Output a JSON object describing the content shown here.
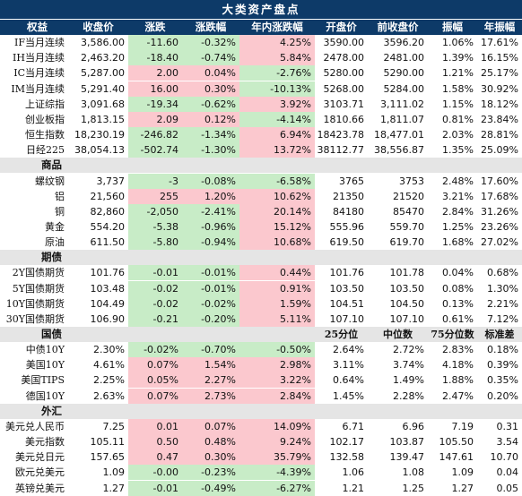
{
  "title": "大类资产盘点",
  "colors": {
    "header_bg": "#0d3a68",
    "up": "#fbc8ce",
    "down": "#c8ecc7",
    "section_bg": "#e5e5e5"
  },
  "columns": [
    "权益",
    "收盘价",
    "涨跌",
    "涨跌幅",
    "年内涨跌幅",
    "开盘价",
    "前收盘价",
    "振幅",
    "年振幅"
  ],
  "equity": [
    {
      "name": "IF当月连续",
      "close": "3,586.00",
      "chg": "-11.60",
      "pct": "-0.32%",
      "ytd": "4.25%",
      "open": "3590.00",
      "prev": "3596.20",
      "amp": "1.06%",
      "yamp": "17.61%",
      "c_chg": "down",
      "c_pct": "down",
      "c_ytd": "up"
    },
    {
      "name": "IH当月连续",
      "close": "2,463.20",
      "chg": "-18.40",
      "pct": "-0.74%",
      "ytd": "5.84%",
      "open": "2478.00",
      "prev": "2481.00",
      "amp": "1.39%",
      "yamp": "16.15%",
      "c_chg": "down",
      "c_pct": "down",
      "c_ytd": "up"
    },
    {
      "name": "IC当月连续",
      "close": "5,287.00",
      "chg": "2.00",
      "pct": "0.04%",
      "ytd": "-2.76%",
      "open": "5280.00",
      "prev": "5290.00",
      "amp": "1.21%",
      "yamp": "25.17%",
      "c_chg": "up",
      "c_pct": "up",
      "c_ytd": "down"
    },
    {
      "name": "IM当月连续",
      "close": "5,291.40",
      "chg": "16.00",
      "pct": "0.30%",
      "ytd": "-10.13%",
      "open": "5268.00",
      "prev": "5284.00",
      "amp": "1.58%",
      "yamp": "30.92%",
      "c_chg": "up",
      "c_pct": "up",
      "c_ytd": "down"
    },
    {
      "name": "上证综指",
      "close": "3,091.68",
      "chg": "-19.34",
      "pct": "-0.62%",
      "ytd": "3.92%",
      "open": "3103.71",
      "prev": "3,111.02",
      "amp": "1.15%",
      "yamp": "18.12%",
      "c_chg": "down",
      "c_pct": "down",
      "c_ytd": "up"
    },
    {
      "name": "创业板指",
      "close": "1,813.15",
      "chg": "2.09",
      "pct": "0.12%",
      "ytd": "-4.14%",
      "open": "1810.66",
      "prev": "1,811.07",
      "amp": "0.81%",
      "yamp": "23.84%",
      "c_chg": "up",
      "c_pct": "up",
      "c_ytd": "down"
    },
    {
      "name": "恒生指数",
      "close": "18,230.19",
      "chg": "-246.82",
      "pct": "-1.34%",
      "ytd": "6.94%",
      "open": "18423.78",
      "prev": "18,477.01",
      "amp": "2.03%",
      "yamp": "28.81%",
      "c_chg": "down",
      "c_pct": "down",
      "c_ytd": "up"
    },
    {
      "name": "日经225",
      "close": "38,054.13",
      "chg": "-502.74",
      "pct": "-1.30%",
      "ytd": "13.72%",
      "open": "38112.77",
      "prev": "38,556.87",
      "amp": "1.35%",
      "yamp": "25.09%",
      "c_chg": "down",
      "c_pct": "down",
      "c_ytd": "up"
    }
  ],
  "commodities_label": "商品",
  "commodities": [
    {
      "name": "螺纹钢",
      "close": "3,737",
      "chg": "-3",
      "pct": "-0.08%",
      "ytd": "-6.58%",
      "open": "3765",
      "prev": "3753",
      "amp": "2.48%",
      "yamp": "17.60%",
      "c_chg": "down",
      "c_pct": "down",
      "c_ytd": "down"
    },
    {
      "name": "铝",
      "close": "21,560",
      "chg": "255",
      "pct": "1.20%",
      "ytd": "10.62%",
      "open": "21350",
      "prev": "21520",
      "amp": "3.21%",
      "yamp": "17.68%",
      "c_chg": "up",
      "c_pct": "up",
      "c_ytd": "up"
    },
    {
      "name": "铜",
      "close": "82,860",
      "chg": "-2,050",
      "pct": "-2.41%",
      "ytd": "20.14%",
      "open": "84180",
      "prev": "85470",
      "amp": "2.84%",
      "yamp": "31.26%",
      "c_chg": "down",
      "c_pct": "down",
      "c_ytd": "up"
    },
    {
      "name": "黄金",
      "close": "554.20",
      "chg": "-5.38",
      "pct": "-0.96%",
      "ytd": "15.12%",
      "open": "555.96",
      "prev": "559.70",
      "amp": "1.25%",
      "yamp": "23.26%",
      "c_chg": "down",
      "c_pct": "down",
      "c_ytd": "up"
    },
    {
      "name": "原油",
      "close": "611.50",
      "chg": "-5.80",
      "pct": "-0.94%",
      "ytd": "10.68%",
      "open": "619.50",
      "prev": "619.70",
      "amp": "1.68%",
      "yamp": "27.02%",
      "c_chg": "down",
      "c_pct": "down",
      "c_ytd": "up"
    }
  ],
  "futures_label": "期债",
  "futures": [
    {
      "name": "2Y国债期货",
      "close": "101.76",
      "chg": "-0.01",
      "pct": "-0.01%",
      "ytd": "0.44%",
      "open": "101.76",
      "prev": "101.78",
      "amp": "0.04%",
      "yamp": "0.68%",
      "c_chg": "down",
      "c_pct": "down",
      "c_ytd": "up"
    },
    {
      "name": "5Y国债期货",
      "close": "103.48",
      "chg": "-0.02",
      "pct": "-0.01%",
      "ytd": "0.91%",
      "open": "103.50",
      "prev": "103.50",
      "amp": "0.08%",
      "yamp": "1.30%",
      "c_chg": "down",
      "c_pct": "down",
      "c_ytd": "up"
    },
    {
      "name": "10Y国债期货",
      "close": "104.49",
      "chg": "-0.02",
      "pct": "-0.02%",
      "ytd": "1.59%",
      "open": "104.51",
      "prev": "104.50",
      "amp": "0.13%",
      "yamp": "2.21%",
      "c_chg": "down",
      "c_pct": "down",
      "c_ytd": "up"
    },
    {
      "name": "30Y国债期货",
      "close": "106.90",
      "chg": "-0.21",
      "pct": "-0.20%",
      "ytd": "5.11%",
      "open": "107.10",
      "prev": "107.10",
      "amp": "0.61%",
      "yamp": "7.12%",
      "c_chg": "down",
      "c_pct": "down",
      "c_ytd": "up"
    }
  ],
  "bonds_label": "国债",
  "bonds_headers": [
    "25分位",
    "中位数",
    "75分位数",
    "标准差"
  ],
  "bonds": [
    {
      "name": "中债10Y",
      "close": "2.30%",
      "chg": "-0.02%",
      "pct": "-0.70%",
      "ytd": "-0.50%",
      "q25": "2.64%",
      "med": "2.72%",
      "q75": "2.83%",
      "sd": "0.18%",
      "c_chg": "down",
      "c_pct": "down",
      "c_ytd": "down"
    },
    {
      "name": "美国10Y",
      "close": "4.61%",
      "chg": "0.07%",
      "pct": "1.54%",
      "ytd": "2.98%",
      "q25": "3.11%",
      "med": "3.74%",
      "q75": "4.18%",
      "sd": "0.39%",
      "c_chg": "up",
      "c_pct": "up",
      "c_ytd": "up"
    },
    {
      "name": "美国TIPS",
      "close": "2.25%",
      "chg": "0.05%",
      "pct": "2.27%",
      "ytd": "3.22%",
      "q25": "0.64%",
      "med": "1.49%",
      "q75": "1.88%",
      "sd": "0.35%",
      "c_chg": "up",
      "c_pct": "up",
      "c_ytd": "up"
    },
    {
      "name": "德国10Y",
      "close": "2.63%",
      "chg": "0.07%",
      "pct": "2.73%",
      "ytd": "2.84%",
      "q25": "1.45%",
      "med": "2.28%",
      "q75": "2.47%",
      "sd": "0.20%",
      "c_chg": "up",
      "c_pct": "up",
      "c_ytd": "up"
    }
  ],
  "fx_label": "外汇",
  "fx": [
    {
      "name": "美元兑人民币",
      "close": "7.25",
      "chg": "0.01",
      "pct": "0.07%",
      "ytd": "14.09%",
      "q25": "6.71",
      "med": "6.96",
      "q75": "7.19",
      "sd": "0.31",
      "c_chg": "up",
      "c_pct": "up",
      "c_ytd": "up"
    },
    {
      "name": "美元指数",
      "close": "105.11",
      "chg": "0.50",
      "pct": "0.48%",
      "ytd": "9.24%",
      "q25": "102.17",
      "med": "103.87",
      "q75": "105.50",
      "sd": "3.54",
      "c_chg": "up",
      "c_pct": "up",
      "c_ytd": "up"
    },
    {
      "name": "美元兑日元",
      "close": "157.65",
      "chg": "0.47",
      "pct": "0.30%",
      "ytd": "35.79%",
      "q25": "132.58",
      "med": "139.47",
      "q75": "147.61",
      "sd": "10.70",
      "c_chg": "up",
      "c_pct": "up",
      "c_ytd": "up"
    },
    {
      "name": "欧元兑美元",
      "close": "1.09",
      "chg": "-0.00",
      "pct": "-0.23%",
      "ytd": "-4.39%",
      "q25": "1.06",
      "med": "1.08",
      "q75": "1.09",
      "sd": "0.04",
      "c_chg": "down",
      "c_pct": "down",
      "c_ytd": "down"
    },
    {
      "name": "英镑兑美元",
      "close": "1.27",
      "chg": "-0.01",
      "pct": "-0.49%",
      "ytd": "-6.27%",
      "q25": "1.21",
      "med": "1.25",
      "q75": "1.27",
      "sd": "0.05",
      "c_chg": "down",
      "c_pct": "down",
      "c_ytd": "down"
    }
  ]
}
